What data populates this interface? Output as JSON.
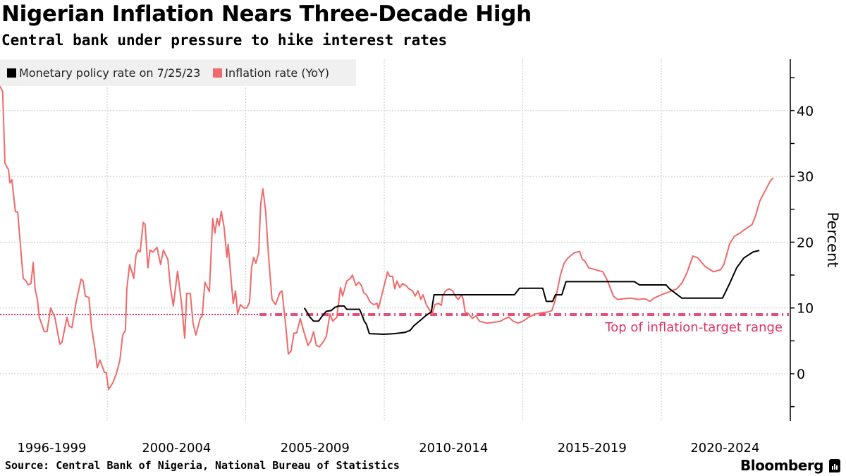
{
  "header": {
    "title": "Nigerian Inflation Nears Three-Decade High",
    "subtitle": "Central bank under pressure to hike interest rates"
  },
  "footer": {
    "source": "Source: Central Bank of Nigeria, National Bureau of Statistics",
    "brand": "Bloomberg"
  },
  "chart_data": {
    "type": "line",
    "title": "Nigerian Inflation Nears Three-Decade High",
    "subtitle": "Central bank under pressure to hike interest rates",
    "xlabel": "",
    "ylabel": "Percent",
    "xlim": [
      1996.13,
      2024.6
    ],
    "ylim": [
      -7,
      48
    ],
    "x_tick_labels": [
      {
        "label": "1996-1999",
        "center": 1998.0
      },
      {
        "label": "2000-2004",
        "center": 2002.5
      },
      {
        "label": "2005-2009",
        "center": 2007.5
      },
      {
        "label": "2010-2014",
        "center": 2012.5
      },
      {
        "label": "2015-2019",
        "center": 2017.5
      },
      {
        "label": "2020-2024",
        "center": 2022.3
      }
    ],
    "x_gridlines": [
      2000,
      2005,
      2010,
      2015,
      2020
    ],
    "y_ticks": [
      0,
      10,
      20,
      30,
      40
    ],
    "y_minor_ticks": [
      -5,
      5,
      15,
      25,
      35,
      45
    ],
    "grid": true,
    "legend_position": "top-left",
    "series": [
      {
        "name": "Monetary policy rate on 7/25/23",
        "color": "#000000",
        "points": [
          [
            2007.12,
            10
          ],
          [
            2007.32,
            8.6
          ],
          [
            2007.45,
            8
          ],
          [
            2007.63,
            8
          ],
          [
            2007.78,
            8.9
          ],
          [
            2007.91,
            9.5
          ],
          [
            2008.09,
            9.6
          ],
          [
            2008.22,
            10.1
          ],
          [
            2008.35,
            10.3
          ],
          [
            2008.55,
            10.3
          ],
          [
            2008.65,
            9.8
          ],
          [
            2009.11,
            9.8
          ],
          [
            2009.18,
            9.1
          ],
          [
            2009.28,
            8
          ],
          [
            2009.36,
            7.5
          ],
          [
            2009.46,
            6.1
          ],
          [
            2009.99,
            6
          ],
          [
            2010.37,
            6.1
          ],
          [
            2010.76,
            6.3
          ],
          [
            2010.94,
            6.6
          ],
          [
            2011.07,
            7.3
          ],
          [
            2011.27,
            8
          ],
          [
            2011.52,
            8.9
          ],
          [
            2011.7,
            9.4
          ],
          [
            2011.8,
            12
          ],
          [
            2014.7,
            12
          ],
          [
            2014.88,
            13
          ],
          [
            2015.72,
            13
          ],
          [
            2015.85,
            11
          ],
          [
            2016.08,
            11
          ],
          [
            2016.18,
            12
          ],
          [
            2016.41,
            12
          ],
          [
            2016.56,
            14
          ],
          [
            2019.03,
            14
          ],
          [
            2019.21,
            13.5
          ],
          [
            2020.17,
            13.5
          ],
          [
            2020.3,
            12.9
          ],
          [
            2020.74,
            11.5
          ],
          [
            2022.21,
            11.5
          ],
          [
            2022.47,
            13.75
          ],
          [
            2022.72,
            16.1
          ],
          [
            2022.98,
            17.6
          ],
          [
            2023.31,
            18.5
          ],
          [
            2023.54,
            18.75
          ]
        ]
      },
      {
        "name": "Inflation rate (YoY)",
        "color": "#ef6a6a",
        "points": [
          [
            1996.13,
            43.7
          ],
          [
            1996.23,
            42.9
          ],
          [
            1996.31,
            32
          ],
          [
            1996.44,
            31
          ],
          [
            1996.49,
            29
          ],
          [
            1996.56,
            29.5
          ],
          [
            1996.69,
            24.6
          ],
          [
            1996.77,
            24.6
          ],
          [
            1996.97,
            14.5
          ],
          [
            1997.07,
            14.1
          ],
          [
            1997.15,
            13.5
          ],
          [
            1997.25,
            13.7
          ],
          [
            1997.33,
            16.9
          ],
          [
            1997.4,
            12.9
          ],
          [
            1997.48,
            11.3
          ],
          [
            1997.55,
            8.6
          ],
          [
            1997.73,
            6.4
          ],
          [
            1997.83,
            6.4
          ],
          [
            1997.96,
            10
          ],
          [
            1998.11,
            8.6
          ],
          [
            1998.29,
            4.5
          ],
          [
            1998.37,
            4.8
          ],
          [
            1998.55,
            8.6
          ],
          [
            1998.62,
            7.3
          ],
          [
            1998.73,
            7
          ],
          [
            1998.88,
            10.9
          ],
          [
            1999.06,
            14.4
          ],
          [
            1999.13,
            14.1
          ],
          [
            1999.21,
            11.8
          ],
          [
            1999.34,
            11.6
          ],
          [
            1999.44,
            7
          ],
          [
            1999.57,
            3.5
          ],
          [
            1999.64,
            0.9
          ],
          [
            1999.74,
            2.1
          ],
          [
            1999.9,
            0.2
          ],
          [
            1999.97,
            0.2
          ],
          [
            2000.05,
            -2.4
          ],
          [
            2000.2,
            -1.4
          ],
          [
            2000.33,
            0
          ],
          [
            2000.46,
            2.1
          ],
          [
            2000.56,
            5.9
          ],
          [
            2000.66,
            6.6
          ],
          [
            2000.71,
            12.9
          ],
          [
            2000.81,
            16.6
          ],
          [
            2000.96,
            14.5
          ],
          [
            2001.04,
            18
          ],
          [
            2001.12,
            18.8
          ],
          [
            2001.19,
            18.5
          ],
          [
            2001.3,
            23
          ],
          [
            2001.37,
            22.7
          ],
          [
            2001.47,
            16.1
          ],
          [
            2001.55,
            18.8
          ],
          [
            2001.65,
            18.5
          ],
          [
            2001.8,
            19.2
          ],
          [
            2001.93,
            16.6
          ],
          [
            2002.03,
            18.8
          ],
          [
            2002.19,
            17.4
          ],
          [
            2002.29,
            12.9
          ],
          [
            2002.39,
            10.3
          ],
          [
            2002.54,
            15.6
          ],
          [
            2002.69,
            10.5
          ],
          [
            2002.8,
            5.4
          ],
          [
            2002.87,
            12.2
          ],
          [
            2003.0,
            12.2
          ],
          [
            2003.1,
            7.7
          ],
          [
            2003.2,
            5.9
          ],
          [
            2003.36,
            8.4
          ],
          [
            2003.43,
            8.8
          ],
          [
            2003.53,
            13.9
          ],
          [
            2003.64,
            12.9
          ],
          [
            2003.69,
            12.5
          ],
          [
            2003.81,
            23.6
          ],
          [
            2003.89,
            21.4
          ],
          [
            2003.97,
            23.6
          ],
          [
            2004.04,
            22.5
          ],
          [
            2004.12,
            24.7
          ],
          [
            2004.22,
            22.3
          ],
          [
            2004.32,
            17.7
          ],
          [
            2004.37,
            19.7
          ],
          [
            2004.48,
            13.9
          ],
          [
            2004.55,
            10.7
          ],
          [
            2004.63,
            12.6
          ],
          [
            2004.71,
            9.1
          ],
          [
            2004.81,
            10.5
          ],
          [
            2004.93,
            10
          ],
          [
            2005.04,
            10
          ],
          [
            2005.14,
            10.9
          ],
          [
            2005.21,
            16.1
          ],
          [
            2005.29,
            17.7
          ],
          [
            2005.37,
            16.8
          ],
          [
            2005.47,
            18.4
          ],
          [
            2005.54,
            25.7
          ],
          [
            2005.62,
            28.1
          ],
          [
            2005.72,
            24.7
          ],
          [
            2005.82,
            18.2
          ],
          [
            2005.95,
            11.3
          ],
          [
            2006.08,
            10.5
          ],
          [
            2006.23,
            12.3
          ],
          [
            2006.31,
            12.6
          ],
          [
            2006.44,
            7.5
          ],
          [
            2006.54,
            3
          ],
          [
            2006.64,
            3.5
          ],
          [
            2006.74,
            6.2
          ],
          [
            2006.84,
            6.2
          ],
          [
            2006.97,
            8.4
          ],
          [
            2007.1,
            6.4
          ],
          [
            2007.25,
            4.3
          ],
          [
            2007.35,
            5
          ],
          [
            2007.45,
            6.4
          ],
          [
            2007.55,
            4.3
          ],
          [
            2007.66,
            4.1
          ],
          [
            2007.81,
            4.9
          ],
          [
            2007.91,
            5.7
          ],
          [
            2008.04,
            9.1
          ],
          [
            2008.14,
            8
          ],
          [
            2008.29,
            8.6
          ],
          [
            2008.42,
            13.1
          ],
          [
            2008.5,
            11.8
          ],
          [
            2008.65,
            14.1
          ],
          [
            2008.78,
            14.5
          ],
          [
            2008.85,
            15
          ],
          [
            2008.98,
            13.4
          ],
          [
            2009.08,
            13.9
          ],
          [
            2009.18,
            13.4
          ],
          [
            2009.26,
            12.3
          ],
          [
            2009.36,
            12
          ],
          [
            2009.49,
            10.9
          ],
          [
            2009.62,
            10.5
          ],
          [
            2009.74,
            10.7
          ],
          [
            2009.79,
            9.9
          ],
          [
            2009.95,
            12.6
          ],
          [
            2010.07,
            14.6
          ],
          [
            2010.12,
            15.5
          ],
          [
            2010.2,
            14.8
          ],
          [
            2010.3,
            14.8
          ],
          [
            2010.38,
            12.9
          ],
          [
            2010.46,
            14.1
          ],
          [
            2010.56,
            13.1
          ],
          [
            2010.66,
            13.7
          ],
          [
            2010.79,
            13.4
          ],
          [
            2010.89,
            12.9
          ],
          [
            2011.02,
            12.6
          ],
          [
            2011.12,
            11.8
          ],
          [
            2011.22,
            12.6
          ],
          [
            2011.32,
            11.3
          ],
          [
            2011.4,
            12
          ],
          [
            2011.52,
            10.5
          ],
          [
            2011.65,
            9.6
          ],
          [
            2011.73,
            9.1
          ],
          [
            2011.83,
            10.5
          ],
          [
            2011.96,
            10.7
          ],
          [
            2012.06,
            10.4
          ],
          [
            2012.11,
            11.8
          ],
          [
            2012.21,
            12.6
          ],
          [
            2012.34,
            12.9
          ],
          [
            2012.47,
            12.6
          ],
          [
            2012.57,
            11.8
          ],
          [
            2012.67,
            11.3
          ],
          [
            2012.8,
            12
          ],
          [
            2012.85,
            11.3
          ],
          [
            2012.92,
            9.4
          ],
          [
            2013.05,
            9.1
          ],
          [
            2013.18,
            8.4
          ],
          [
            2013.31,
            8.8
          ],
          [
            2013.43,
            8
          ],
          [
            2013.69,
            7.7
          ],
          [
            2013.94,
            7.8
          ],
          [
            2014.2,
            8
          ],
          [
            2014.32,
            8.3
          ],
          [
            2014.5,
            8.6
          ],
          [
            2014.65,
            8
          ],
          [
            2014.83,
            7.7
          ],
          [
            2015.01,
            8
          ],
          [
            2015.21,
            8.6
          ],
          [
            2015.47,
            9.1
          ],
          [
            2015.72,
            9.3
          ],
          [
            2015.93,
            9.4
          ],
          [
            2016.05,
            9.6
          ],
          [
            2016.18,
            11.3
          ],
          [
            2016.36,
            15
          ],
          [
            2016.49,
            16.8
          ],
          [
            2016.61,
            17.5
          ],
          [
            2016.74,
            18
          ],
          [
            2016.87,
            18.4
          ],
          [
            2017.05,
            18.6
          ],
          [
            2017.15,
            17.4
          ],
          [
            2017.25,
            17.1
          ],
          [
            2017.38,
            16.1
          ],
          [
            2017.63,
            15.8
          ],
          [
            2017.89,
            15.5
          ],
          [
            2018.06,
            14.1
          ],
          [
            2018.27,
            11.8
          ],
          [
            2018.42,
            11.3
          ],
          [
            2018.65,
            11.4
          ],
          [
            2018.9,
            11.5
          ],
          [
            2019.16,
            11.3
          ],
          [
            2019.41,
            11.4
          ],
          [
            2019.59,
            11
          ],
          [
            2019.74,
            11.5
          ],
          [
            2020.0,
            12
          ],
          [
            2020.25,
            12.4
          ],
          [
            2020.56,
            12.9
          ],
          [
            2020.76,
            13.9
          ],
          [
            2020.94,
            15.5
          ],
          [
            2021.14,
            17.9
          ],
          [
            2021.32,
            17.6
          ],
          [
            2021.58,
            16.3
          ],
          [
            2021.88,
            15.5
          ],
          [
            2022.14,
            15.8
          ],
          [
            2022.26,
            16.6
          ],
          [
            2022.47,
            19.8
          ],
          [
            2022.64,
            20.9
          ],
          [
            2022.85,
            21.4
          ],
          [
            2023.0,
            21.9
          ],
          [
            2023.15,
            22.3
          ],
          [
            2023.28,
            22.7
          ],
          [
            2023.41,
            24.1
          ],
          [
            2023.56,
            26.3
          ],
          [
            2023.76,
            27.9
          ],
          [
            2023.92,
            29.2
          ],
          [
            2024.04,
            29.8
          ]
        ]
      }
    ],
    "annotations": [
      {
        "type": "hline",
        "value": 9,
        "label": "Top of inflation-target range",
        "color": "#e0335f",
        "style_before": "dotted",
        "style_after": "dash-dot",
        "style_switch_x": 2005.5
      }
    ]
  }
}
